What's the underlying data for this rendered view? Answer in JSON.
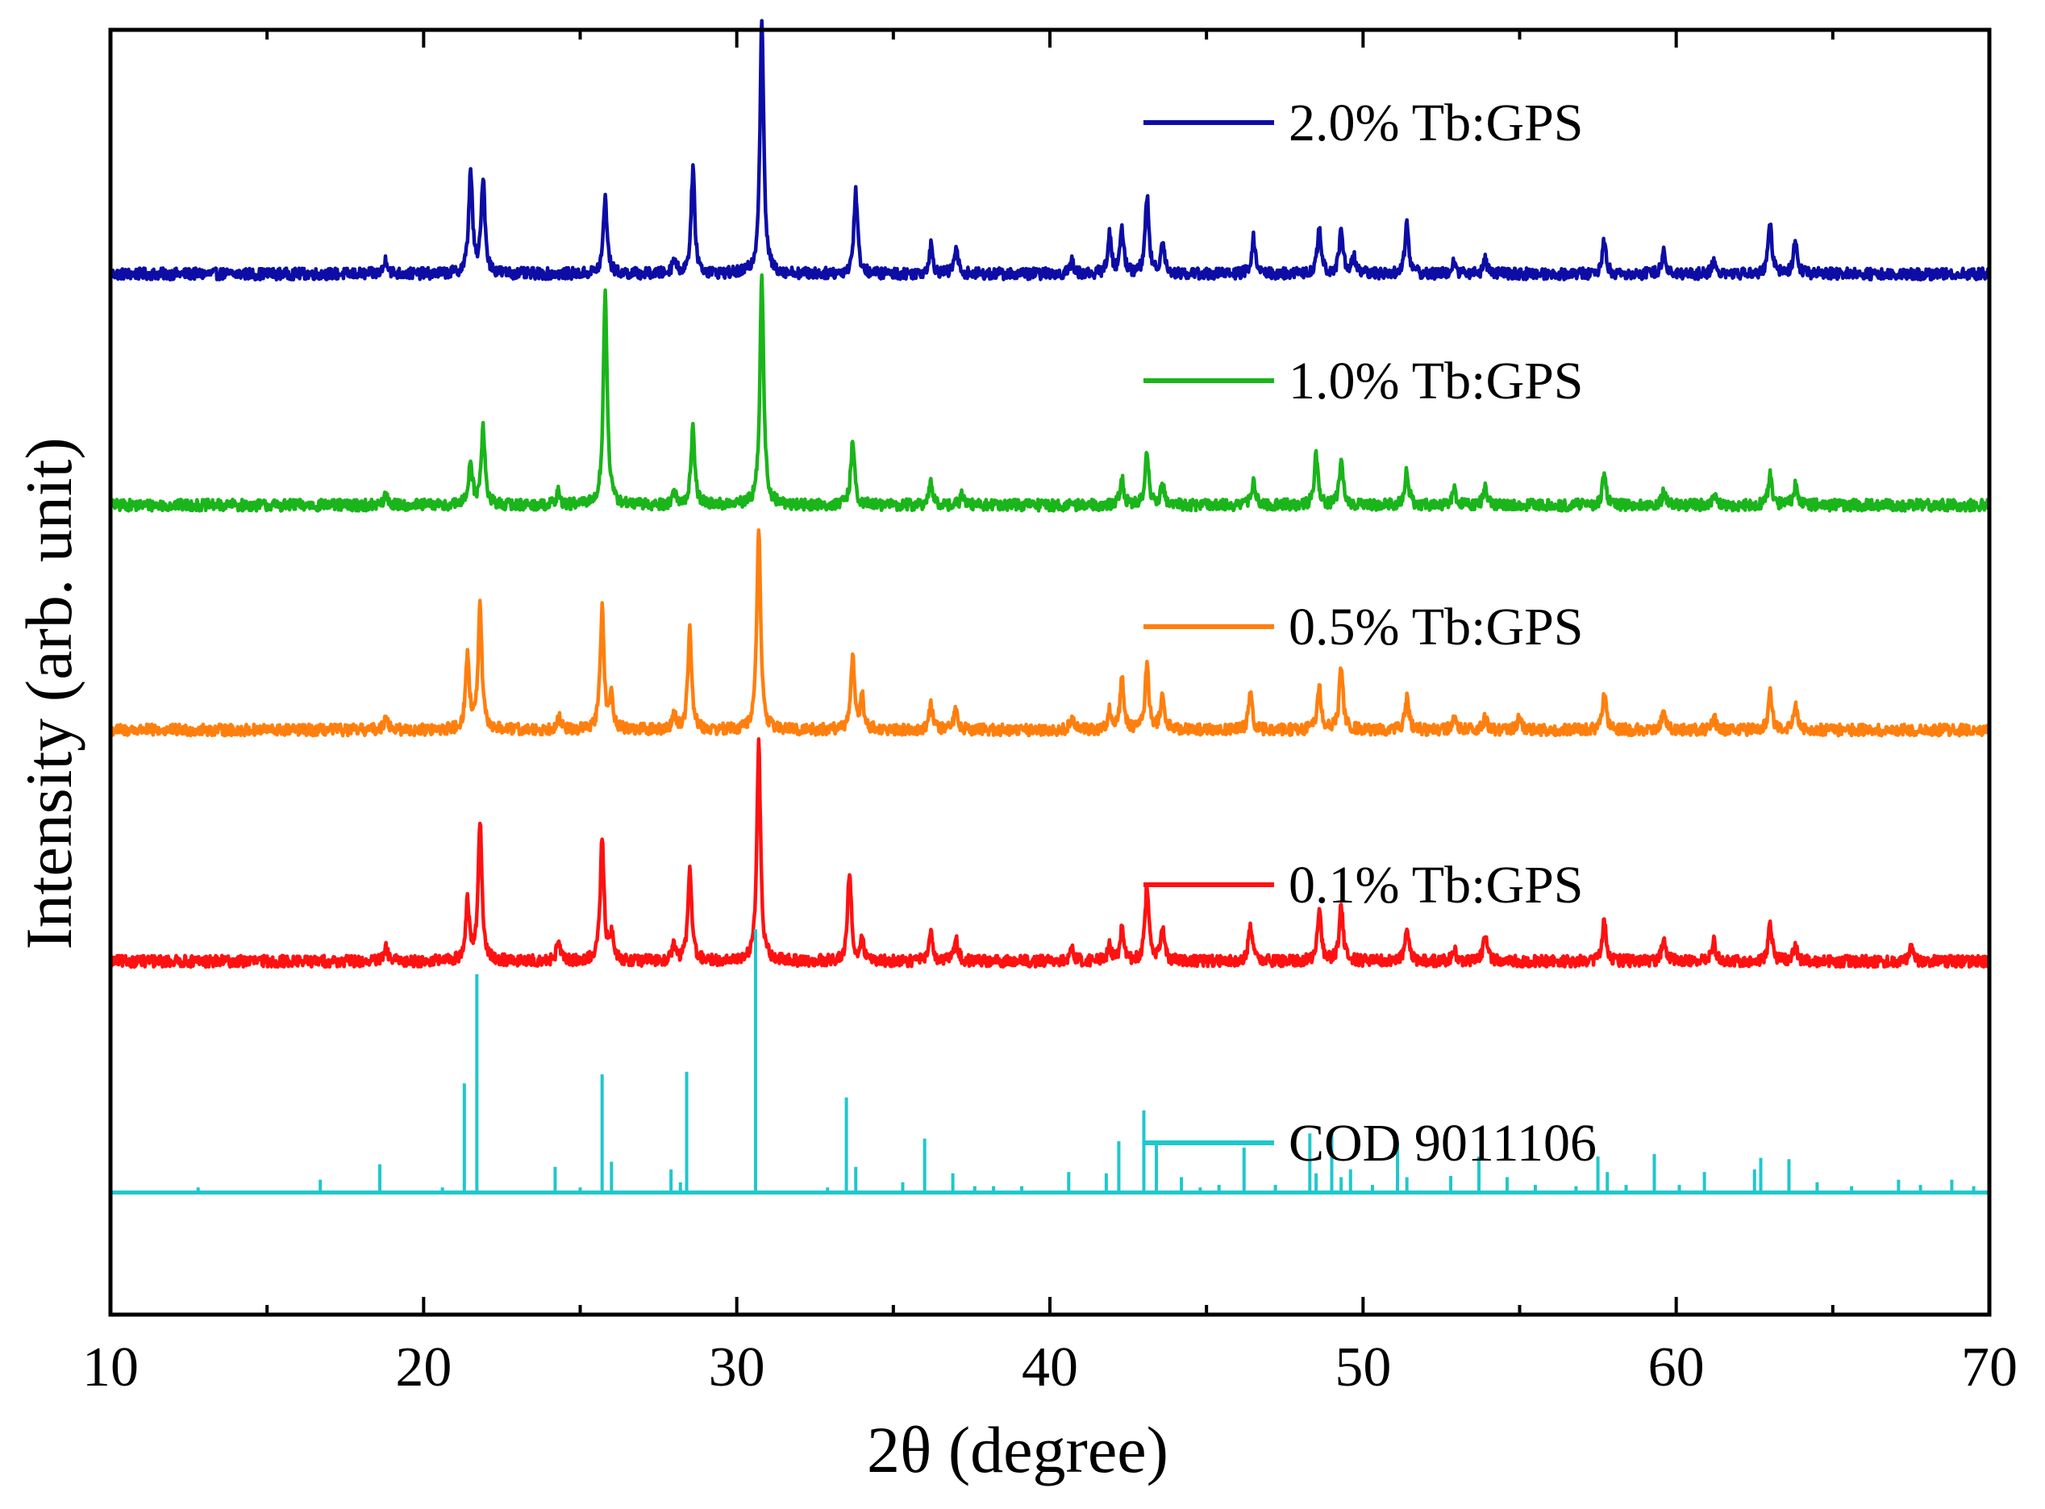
{
  "chart_data": {
    "type": "line",
    "title": "",
    "xlabel": "2θ (degree)",
    "ylabel": "Intensity (arb. unit)",
    "xlim": [
      10,
      70
    ],
    "xticks": [
      10,
      20,
      30,
      40,
      50,
      60,
      70
    ],
    "ylim": [
      0,
      1
    ],
    "grid": false,
    "legend_position": "right",
    "series": [
      {
        "name": "2.0% Tb:GPS",
        "color": "#0d0da6",
        "baseline": 0.81,
        "kind": "pattern",
        "peaks": [
          [
            18.8,
            0.012
          ],
          [
            21.5,
            0.08
          ],
          [
            21.9,
            0.075
          ],
          [
            25.8,
            0.06
          ],
          [
            28.0,
            0.012
          ],
          [
            28.6,
            0.08
          ],
          [
            30.8,
            0.2
          ],
          [
            33.8,
            0.065
          ],
          [
            36.2,
            0.022
          ],
          [
            37.0,
            0.02
          ],
          [
            40.7,
            0.01
          ],
          [
            41.9,
            0.03
          ],
          [
            42.3,
            0.035
          ],
          [
            43.1,
            0.06
          ],
          [
            43.6,
            0.025
          ],
          [
            46.5,
            0.028
          ],
          [
            48.6,
            0.035
          ],
          [
            49.3,
            0.035
          ],
          [
            49.7,
            0.015
          ],
          [
            51.4,
            0.04
          ],
          [
            52.9,
            0.01
          ],
          [
            53.9,
            0.012
          ],
          [
            57.7,
            0.025
          ],
          [
            59.6,
            0.02
          ],
          [
            61.2,
            0.01
          ],
          [
            63.0,
            0.04
          ],
          [
            63.8,
            0.025
          ]
        ]
      },
      {
        "name": "1.0% Tb:GPS",
        "color": "#1ab51a",
        "baseline": 0.63,
        "kind": "pattern",
        "peaks": [
          [
            18.8,
            0.008
          ],
          [
            21.5,
            0.035
          ],
          [
            21.9,
            0.06
          ],
          [
            24.3,
            0.01
          ],
          [
            25.8,
            0.17
          ],
          [
            28.0,
            0.01
          ],
          [
            28.6,
            0.06
          ],
          [
            30.8,
            0.18
          ],
          [
            33.7,
            0.05
          ],
          [
            36.2,
            0.017
          ],
          [
            37.2,
            0.008
          ],
          [
            42.3,
            0.02
          ],
          [
            43.1,
            0.04
          ],
          [
            43.6,
            0.018
          ],
          [
            46.5,
            0.02
          ],
          [
            48.5,
            0.038
          ],
          [
            49.3,
            0.033
          ],
          [
            51.4,
            0.027
          ],
          [
            52.9,
            0.014
          ],
          [
            53.9,
            0.013
          ],
          [
            57.7,
            0.024
          ],
          [
            59.6,
            0.01
          ],
          [
            61.2,
            0.008
          ],
          [
            63.0,
            0.023
          ],
          [
            63.8,
            0.015
          ]
        ]
      },
      {
        "name": "0.5% Tb:GPS",
        "color": "#ff7f0e",
        "baseline": 0.455,
        "kind": "pattern",
        "peaks": [
          [
            18.8,
            0.012
          ],
          [
            21.4,
            0.058
          ],
          [
            21.8,
            0.095
          ],
          [
            24.3,
            0.012
          ],
          [
            25.7,
            0.095
          ],
          [
            26.0,
            0.025
          ],
          [
            28.0,
            0.012
          ],
          [
            28.5,
            0.08
          ],
          [
            30.7,
            0.16
          ],
          [
            33.7,
            0.058
          ],
          [
            34.0,
            0.025
          ],
          [
            36.2,
            0.02
          ],
          [
            37.0,
            0.018
          ],
          [
            40.7,
            0.01
          ],
          [
            41.9,
            0.015
          ],
          [
            42.3,
            0.04
          ],
          [
            43.1,
            0.05
          ],
          [
            43.6,
            0.03
          ],
          [
            46.4,
            0.028
          ],
          [
            48.6,
            0.035
          ],
          [
            49.3,
            0.05
          ],
          [
            51.4,
            0.025
          ],
          [
            52.9,
            0.01
          ],
          [
            53.9,
            0.01
          ],
          [
            55.0,
            0.01
          ],
          [
            57.7,
            0.03
          ],
          [
            59.6,
            0.015
          ],
          [
            61.2,
            0.01
          ],
          [
            63.0,
            0.03
          ],
          [
            63.8,
            0.02
          ]
        ]
      },
      {
        "name": "0.1% Tb:GPS",
        "color": "#ff1111",
        "baseline": 0.275,
        "kind": "pattern",
        "peaks": [
          [
            18.8,
            0.01
          ],
          [
            21.4,
            0.045
          ],
          [
            21.8,
            0.11
          ],
          [
            24.3,
            0.015
          ],
          [
            25.7,
            0.095
          ],
          [
            26.0,
            0.02
          ],
          [
            28.0,
            0.012
          ],
          [
            28.5,
            0.075
          ],
          [
            30.7,
            0.17
          ],
          [
            33.6,
            0.07
          ],
          [
            34.0,
            0.015
          ],
          [
            36.2,
            0.022
          ],
          [
            37.0,
            0.018
          ],
          [
            40.7,
            0.012
          ],
          [
            41.9,
            0.012
          ],
          [
            42.3,
            0.025
          ],
          [
            43.1,
            0.06
          ],
          [
            43.6,
            0.025
          ],
          [
            46.4,
            0.028
          ],
          [
            48.6,
            0.04
          ],
          [
            49.3,
            0.045
          ],
          [
            51.4,
            0.025
          ],
          [
            52.9,
            0.01
          ],
          [
            53.9,
            0.022
          ],
          [
            57.7,
            0.032
          ],
          [
            59.6,
            0.018
          ],
          [
            61.2,
            0.015
          ],
          [
            63.0,
            0.03
          ],
          [
            63.8,
            0.012
          ],
          [
            67.5,
            0.01
          ]
        ]
      },
      {
        "name": "COD 9011106",
        "color": "#1ec8cc",
        "baseline": 0.095,
        "kind": "sticks",
        "peaks": [
          [
            12.8,
            0.004
          ],
          [
            16.7,
            0.01
          ],
          [
            18.6,
            0.022
          ],
          [
            20.6,
            0.004
          ],
          [
            21.3,
            0.085
          ],
          [
            21.7,
            0.17
          ],
          [
            24.2,
            0.02
          ],
          [
            25.0,
            0.004
          ],
          [
            25.7,
            0.092
          ],
          [
            26.0,
            0.024
          ],
          [
            27.9,
            0.018
          ],
          [
            28.2,
            0.008
          ],
          [
            28.4,
            0.094
          ],
          [
            30.6,
            0.205
          ],
          [
            32.9,
            0.004
          ],
          [
            33.5,
            0.074
          ],
          [
            33.8,
            0.02
          ],
          [
            35.3,
            0.008
          ],
          [
            36.0,
            0.042
          ],
          [
            36.9,
            0.015
          ],
          [
            37.6,
            0.005
          ],
          [
            38.2,
            0.005
          ],
          [
            39.1,
            0.005
          ],
          [
            40.6,
            0.016
          ],
          [
            41.8,
            0.015
          ],
          [
            42.2,
            0.04
          ],
          [
            43.0,
            0.064
          ],
          [
            43.4,
            0.04
          ],
          [
            44.2,
            0.012
          ],
          [
            44.8,
            0.004
          ],
          [
            45.4,
            0.006
          ],
          [
            46.2,
            0.035
          ],
          [
            47.2,
            0.006
          ],
          [
            48.3,
            0.046
          ],
          [
            48.5,
            0.015
          ],
          [
            49.0,
            0.046
          ],
          [
            49.3,
            0.012
          ],
          [
            49.6,
            0.018
          ],
          [
            50.3,
            0.006
          ],
          [
            51.1,
            0.039
          ],
          [
            51.4,
            0.012
          ],
          [
            52.8,
            0.013
          ],
          [
            53.7,
            0.028
          ],
          [
            54.6,
            0.012
          ],
          [
            55.5,
            0.006
          ],
          [
            56.8,
            0.005
          ],
          [
            57.5,
            0.028
          ],
          [
            57.8,
            0.016
          ],
          [
            58.4,
            0.006
          ],
          [
            59.3,
            0.03
          ],
          [
            60.1,
            0.006
          ],
          [
            60.9,
            0.016
          ],
          [
            62.5,
            0.018
          ],
          [
            62.7,
            0.027
          ],
          [
            63.6,
            0.026
          ],
          [
            64.5,
            0.008
          ],
          [
            65.6,
            0.005
          ],
          [
            67.1,
            0.01
          ],
          [
            67.8,
            0.006
          ],
          [
            68.8,
            0.01
          ],
          [
            69.5,
            0.005
          ]
        ]
      }
    ],
    "legend": [
      "2.0% Tb:GPS",
      "1.0% Tb:GPS",
      "0.5% Tb:GPS",
      "0.1% Tb:GPS",
      "COD 9011106"
    ]
  }
}
